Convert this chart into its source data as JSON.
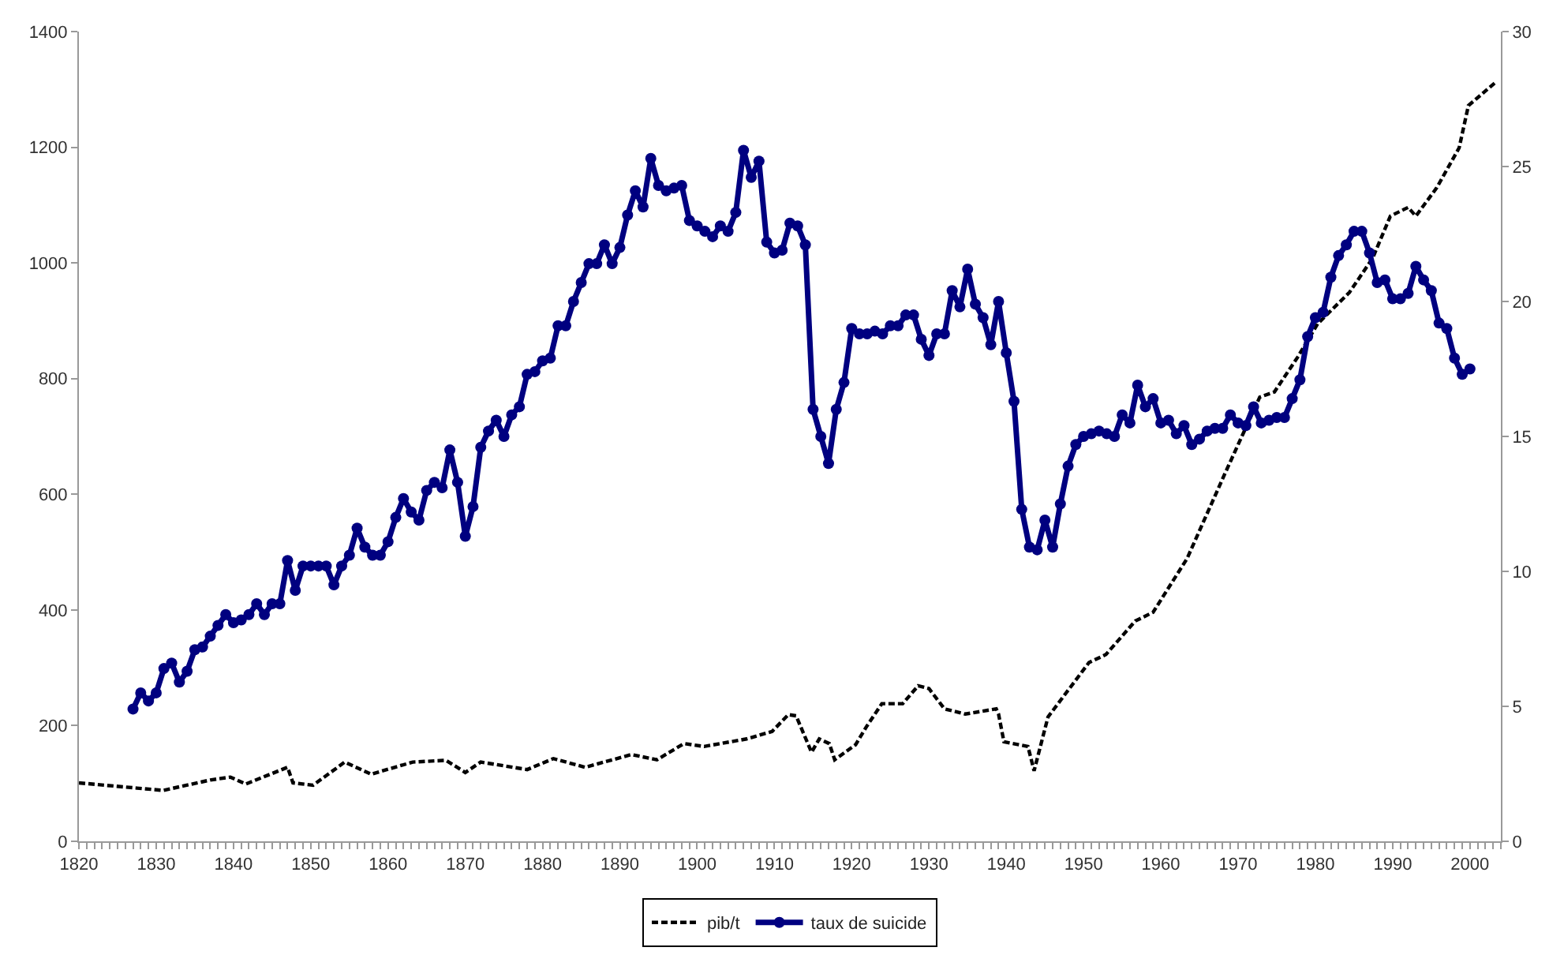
{
  "chart_data": {
    "type": "line",
    "xlim": [
      1820,
      2004
    ],
    "xticks": [
      1820,
      1830,
      1840,
      1850,
      1860,
      1870,
      1880,
      1890,
      1900,
      1910,
      1920,
      1930,
      1940,
      1950,
      1960,
      1970,
      1980,
      1990,
      2000
    ],
    "ylim": [
      0,
      1400
    ],
    "yticks": [
      0,
      200,
      400,
      600,
      800,
      1000,
      1200,
      1400
    ],
    "y2lim": [
      0,
      30
    ],
    "y2ticks": [
      0,
      5,
      10,
      15,
      20,
      25,
      30
    ],
    "grid": false,
    "legend": "bottom",
    "series": [
      {
        "name": "pib/t",
        "color": "#000000",
        "line_style": "dashed",
        "marker": "none",
        "x": [
          1820,
          1827.5,
          1830.9,
          1837,
          1839.6,
          1841.6,
          1847,
          1847.7,
          1850.3,
          1854.4,
          1857.8,
          1863.2,
          1867.5,
          1870,
          1872,
          1878,
          1881.4,
          1885.5,
          1891.5,
          1894.8,
          1898.3,
          1900.9,
          1906.4,
          1909.7,
          1911.8,
          1912.8,
          1914.8,
          1915.8,
          1917.1,
          1917.8,
          1920.5,
          1921.9,
          1923.9,
          1926.6,
          1928.6,
          1930,
          1932,
          1934.7,
          1938.7,
          1939,
          1939.7,
          1942.8,
          1943.6,
          1945.4,
          1950.7,
          1952.9,
          1956.7,
          1959,
          1963.4,
          1968.3,
          1972.8,
          1974.7,
          1977.7,
          1980.3,
          1984.4,
          1987.4,
          1989.7,
          1992,
          1993,
          1995.7,
          1998.6,
          1999.8,
          2003.2
        ],
        "values": [
          101,
          92,
          88,
          106,
          111,
          99,
          128,
          101,
          97,
          137,
          116,
          137,
          140,
          119,
          137,
          124,
          143,
          128,
          150,
          141,
          169,
          164,
          177,
          190,
          219,
          217,
          154,
          177,
          169,
          141,
          167,
          198,
          238,
          238,
          269,
          264,
          229,
          220,
          229,
          220,
          172,
          164,
          122,
          215,
          309,
          323,
          381,
          396,
          489,
          636,
          768,
          777,
          837,
          895,
          949,
          1008,
          1081,
          1096,
          1081,
          1130,
          1199,
          1272,
          1311
        ]
      },
      {
        "name": "taux de suicide",
        "color": "#000080",
        "axis": "y2",
        "line_style": "solid",
        "marker": "circle",
        "x": [
          1827,
          1828,
          1829,
          1830,
          1831,
          1832,
          1833,
          1834,
          1835,
          1836,
          1837,
          1838,
          1839,
          1840,
          1841,
          1842,
          1843,
          1844,
          1845,
          1846,
          1847,
          1848,
          1849,
          1850,
          1851,
          1852,
          1853,
          1854,
          1855,
          1856,
          1857,
          1858,
          1859,
          1860,
          1861,
          1862,
          1863,
          1864,
          1865,
          1866,
          1867,
          1868,
          1869,
          1870,
          1871,
          1872,
          1873,
          1874,
          1875,
          1876,
          1877,
          1878,
          1879,
          1880,
          1881,
          1882,
          1883,
          1884,
          1885,
          1886,
          1887,
          1888,
          1889,
          1890,
          1891,
          1892,
          1893,
          1894,
          1895,
          1896,
          1897,
          1898,
          1899,
          1900,
          1901,
          1902,
          1903,
          1904,
          1905,
          1906,
          1907,
          1908,
          1909,
          1910,
          1911,
          1912,
          1913,
          1914,
          1915,
          1916,
          1917,
          1918,
          1919,
          1920,
          1921,
          1922,
          1923,
          1924,
          1925,
          1926,
          1927,
          1928,
          1929,
          1930,
          1931,
          1932,
          1933,
          1934,
          1935,
          1936,
          1937,
          1938,
          1939,
          1940,
          1941,
          1942,
          1943,
          1944,
          1945,
          1946,
          1947,
          1948,
          1949,
          1950,
          1951,
          1952,
          1953,
          1954,
          1955,
          1956,
          1957,
          1958,
          1959,
          1960,
          1961,
          1962,
          1963,
          1964,
          1965,
          1966,
          1967,
          1968,
          1969,
          1970,
          1971,
          1972,
          1973,
          1974,
          1975,
          1976,
          1977,
          1978,
          1979,
          1980,
          1981,
          1982,
          1983,
          1984,
          1985,
          1986,
          1987,
          1988,
          1989,
          1990,
          1991,
          1992,
          1993,
          1994,
          1995,
          1996,
          1997,
          1998,
          1999,
          2000
        ],
        "values": [
          4.9,
          5.5,
          5.2,
          5.5,
          6.4,
          6.6,
          5.9,
          6.3,
          7.1,
          7.2,
          7.6,
          8.0,
          8.4,
          8.1,
          8.2,
          8.4,
          8.8,
          8.4,
          8.8,
          8.8,
          10.4,
          9.3,
          10.2,
          10.2,
          10.2,
          10.2,
          9.5,
          10.2,
          10.6,
          11.6,
          10.9,
          10.6,
          10.6,
          11.1,
          12.0,
          12.7,
          12.2,
          11.9,
          13.0,
          13.3,
          13.1,
          14.5,
          13.3,
          11.3,
          12.4,
          14.6,
          15.2,
          15.6,
          15.0,
          15.8,
          16.1,
          17.3,
          17.4,
          17.8,
          17.9,
          19.1,
          19.1,
          20.0,
          20.7,
          21.4,
          21.4,
          22.1,
          21.4,
          22.0,
          23.2,
          24.1,
          23.5,
          25.3,
          24.3,
          24.1,
          24.2,
          24.3,
          23.0,
          22.8,
          22.6,
          22.4,
          22.8,
          22.6,
          23.3,
          25.6,
          24.6,
          25.2,
          22.2,
          21.8,
          21.9,
          22.9,
          22.8,
          22.1,
          16.0,
          15.0,
          14.0,
          16.0,
          17.0,
          19.0,
          18.8,
          18.8,
          18.9,
          18.8,
          19.1,
          19.1,
          19.5,
          19.5,
          18.6,
          18.0,
          18.8,
          18.8,
          20.4,
          19.8,
          21.2,
          19.9,
          19.4,
          18.4,
          20.0,
          18.1,
          16.3,
          12.3,
          10.9,
          10.8,
          11.9,
          10.9,
          12.5,
          13.9,
          14.7,
          15.0,
          15.1,
          15.2,
          15.1,
          15.0,
          15.8,
          15.5,
          16.9,
          16.1,
          16.4,
          15.5,
          15.6,
          15.1,
          15.4,
          14.7,
          14.9,
          15.2,
          15.3,
          15.3,
          15.8,
          15.5,
          15.4,
          16.1,
          15.5,
          15.6,
          15.7,
          15.7,
          16.4,
          17.1,
          18.7,
          19.4,
          19.6,
          20.9,
          21.7,
          22.1,
          22.6,
          22.6,
          21.8,
          20.7,
          20.8,
          20.1,
          20.1,
          20.3,
          21.3,
          20.8,
          20.4,
          19.2,
          19.0,
          17.9,
          17.3,
          17.5
        ]
      }
    ]
  }
}
